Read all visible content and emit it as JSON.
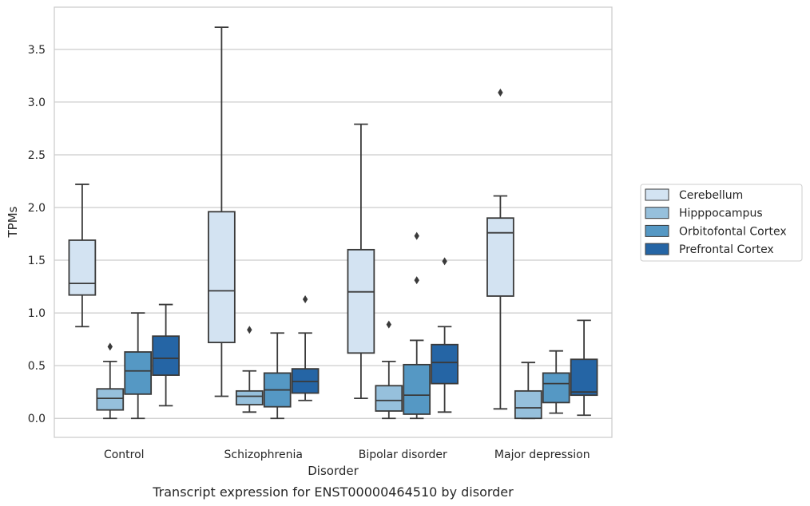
{
  "chart_data": {
    "type": "boxplot",
    "caption": "Transcript expression for ENST00000464510 by disorder",
    "xlabel": "Disorder",
    "ylabel": "TPMs",
    "ylim": [
      -0.18,
      3.9
    ],
    "yticks": [
      "0.0",
      "0.5",
      "1.0",
      "1.5",
      "2.0",
      "2.5",
      "3.0",
      "3.5"
    ],
    "grid": "horizontal",
    "legend_position": "right",
    "categories": [
      "Control",
      "Schizophrenia",
      "Bipolar disorder",
      "Major depression"
    ],
    "series": [
      {
        "name": "Cerebellum",
        "color": "#d3e3f2",
        "boxes": [
          {
            "min": 0.87,
            "q1": 1.17,
            "median": 1.28,
            "q3": 1.69,
            "max": 2.22,
            "outliers": []
          },
          {
            "min": 0.21,
            "q1": 0.72,
            "median": 1.21,
            "q3": 1.96,
            "max": 3.71,
            "outliers": []
          },
          {
            "min": 0.19,
            "q1": 0.62,
            "median": 1.2,
            "q3": 1.6,
            "max": 2.79,
            "outliers": []
          },
          {
            "min": 0.09,
            "q1": 1.16,
            "median": 1.76,
            "q3": 1.9,
            "max": 2.11,
            "outliers": [
              3.09
            ]
          }
        ]
      },
      {
        "name": "Hipppocampus",
        "color": "#96c0dc",
        "boxes": [
          {
            "min": 0.0,
            "q1": 0.08,
            "median": 0.19,
            "q3": 0.28,
            "max": 0.54,
            "outliers": [
              0.68
            ]
          },
          {
            "min": 0.06,
            "q1": 0.13,
            "median": 0.21,
            "q3": 0.26,
            "max": 0.45,
            "outliers": [
              0.84
            ]
          },
          {
            "min": 0.0,
            "q1": 0.07,
            "median": 0.17,
            "q3": 0.31,
            "max": 0.54,
            "outliers": [
              0.89
            ]
          },
          {
            "min": 0.0,
            "q1": 0.0,
            "median": 0.1,
            "q3": 0.26,
            "max": 0.53,
            "outliers": []
          }
        ]
      },
      {
        "name": "Orbitofontal Cortex",
        "color": "#5598c4",
        "boxes": [
          {
            "min": 0.0,
            "q1": 0.23,
            "median": 0.45,
            "q3": 0.63,
            "max": 1.0,
            "outliers": []
          },
          {
            "min": 0.0,
            "q1": 0.11,
            "median": 0.27,
            "q3": 0.43,
            "max": 0.81,
            "outliers": []
          },
          {
            "min": 0.0,
            "q1": 0.04,
            "median": 0.22,
            "q3": 0.51,
            "max": 0.74,
            "outliers": [
              1.31,
              1.73
            ]
          },
          {
            "min": 0.05,
            "q1": 0.15,
            "median": 0.33,
            "q3": 0.43,
            "max": 0.64,
            "outliers": []
          }
        ]
      },
      {
        "name": "Prefrontal Cortex",
        "color": "#2565a5",
        "boxes": [
          {
            "min": 0.12,
            "q1": 0.41,
            "median": 0.57,
            "q3": 0.78,
            "max": 1.08,
            "outliers": []
          },
          {
            "min": 0.17,
            "q1": 0.24,
            "median": 0.35,
            "q3": 0.47,
            "max": 0.81,
            "outliers": [
              1.13
            ]
          },
          {
            "min": 0.06,
            "q1": 0.33,
            "median": 0.53,
            "q3": 0.7,
            "max": 0.87,
            "outliers": [
              1.49
            ]
          },
          {
            "min": 0.03,
            "q1": 0.22,
            "median": 0.25,
            "q3": 0.56,
            "max": 0.93,
            "outliers": []
          }
        ]
      }
    ]
  }
}
